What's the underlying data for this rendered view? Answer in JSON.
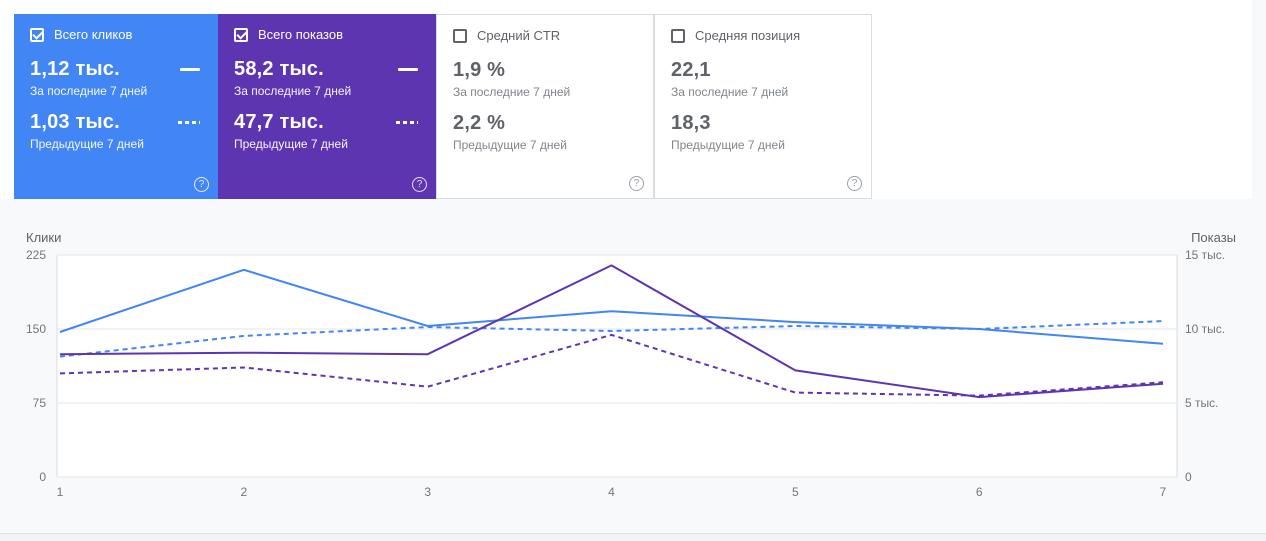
{
  "cards": [
    {
      "label": "Всего кликов",
      "checked": true,
      "value_current": "1,12 тыс.",
      "caption_current": "За последние 7 дней",
      "value_previous": "1,03 тыс.",
      "caption_previous": "Предыдущие 7 дней",
      "color": "#4285f4"
    },
    {
      "label": "Всего показов",
      "checked": true,
      "value_current": "58,2 тыс.",
      "caption_current": "За последние 7 дней",
      "value_previous": "47,7 тыс.",
      "caption_previous": "Предыдущие 7 дней",
      "color": "#5e35b1"
    },
    {
      "label": "Средний CTR",
      "checked": false,
      "value_current": "1,9 %",
      "caption_current": "За последние 7 дней",
      "value_previous": "2,2 %",
      "caption_previous": "Предыдущие 7 дней"
    },
    {
      "label": "Средняя позиция",
      "checked": false,
      "value_current": "22,1",
      "caption_current": "За последние 7 дней",
      "value_previous": "18,3",
      "caption_previous": "Предыдущие 7 дней"
    }
  ],
  "chart_data": {
    "type": "line",
    "x": [
      1,
      2,
      3,
      4,
      5,
      6,
      7
    ],
    "x_tick_labels": [
      "1",
      "2",
      "3",
      "4",
      "5",
      "6",
      "7"
    ],
    "grid": "horizontal",
    "legend_position": "none",
    "left_axis": {
      "title": "Клики",
      "max": 225,
      "ticks": [
        0,
        75,
        150,
        225
      ],
      "tick_labels": [
        "0",
        "75",
        "150",
        "225"
      ]
    },
    "right_axis": {
      "title": "Показы",
      "max": 15000,
      "ticks": [
        0,
        5000,
        10000,
        15000
      ],
      "tick_labels": [
        "0",
        "5 тыс.",
        "10 тыс.",
        "15 тыс."
      ]
    },
    "series": [
      {
        "name": "Клики — за последние 7 дней",
        "axis": "left",
        "line": "solid",
        "color": "#4285f4",
        "values": [
          147,
          210,
          153,
          168,
          157,
          150,
          135
        ]
      },
      {
        "name": "Клики — предыдущие 7 дней",
        "axis": "left",
        "line": "dashed",
        "color": "#4285f4",
        "values": [
          122,
          143,
          152,
          148,
          153,
          150,
          158
        ]
      },
      {
        "name": "Показы — за последние 7 дней",
        "axis": "right",
        "line": "solid",
        "color": "#5e35b1",
        "values": [
          8300,
          8400,
          8300,
          14300,
          7200,
          5400,
          6300
        ]
      },
      {
        "name": "Показы — предыдущие 7 дней",
        "axis": "right",
        "line": "dashed",
        "color": "#5e35b1",
        "values": [
          7000,
          7400,
          6100,
          9600,
          5700,
          5500,
          6400
        ]
      }
    ]
  }
}
